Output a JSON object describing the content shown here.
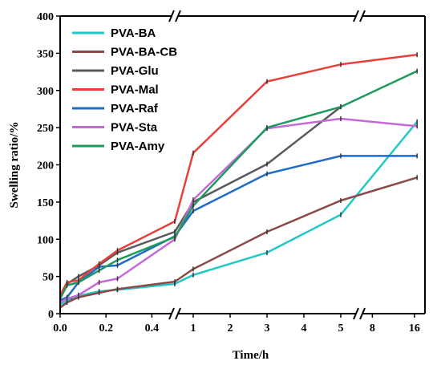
{
  "chart_data": {
    "type": "line",
    "xlabel": "Time/h",
    "ylabel": "Swelling ratio/%",
    "ylim": [
      0,
      400
    ],
    "y_ticks": [
      0,
      50,
      100,
      150,
      200,
      250,
      300,
      350,
      400
    ],
    "x_axis": {
      "broken": true,
      "segments": [
        {
          "range": [
            0,
            0.5
          ],
          "ticks": [
            0.0,
            0.2,
            0.4
          ],
          "tick_labels": [
            "0.0",
            "0.2",
            "0.4"
          ]
        },
        {
          "range": [
            0.5,
            5.5
          ],
          "ticks": [
            1,
            2,
            3,
            4,
            5
          ],
          "tick_labels": [
            "1",
            "2",
            "3",
            "4",
            "5"
          ]
        },
        {
          "range": [
            5.5,
            18
          ],
          "ticks": [
            8,
            16
          ],
          "tick_labels": [
            "8",
            "16"
          ]
        }
      ]
    },
    "legend_position": "top-left",
    "grid": false,
    "series": [
      {
        "name": "PVA-BA",
        "color": "#22c9c4",
        "points": [
          [
            0,
            12
          ],
          [
            0.05,
            20
          ],
          [
            0.08,
            24
          ],
          [
            0.17,
            30
          ],
          [
            0.25,
            32
          ],
          [
            0.5,
            40
          ],
          [
            1,
            52
          ],
          [
            3,
            82
          ],
          [
            5,
            133
          ],
          [
            16.5,
            258
          ]
        ]
      },
      {
        "name": "PVA-BA-CB",
        "color": "#8b4a4a",
        "points": [
          [
            0,
            8
          ],
          [
            0.03,
            15
          ],
          [
            0.08,
            22
          ],
          [
            0.17,
            28
          ],
          [
            0.25,
            33
          ],
          [
            0.5,
            43
          ],
          [
            1,
            60
          ],
          [
            3,
            110
          ],
          [
            5,
            152
          ],
          [
            16.5,
            183
          ]
        ]
      },
      {
        "name": "PVA-Glu",
        "color": "#5a5a5a",
        "points": [
          [
            0,
            20
          ],
          [
            0.03,
            40
          ],
          [
            0.08,
            50
          ],
          [
            0.17,
            65
          ],
          [
            0.25,
            82
          ],
          [
            0.5,
            110
          ],
          [
            1,
            150
          ],
          [
            3,
            201
          ],
          [
            5,
            278
          ]
        ]
      },
      {
        "name": "PVA-Mal",
        "color": "#e8403a",
        "points": [
          [
            0,
            25
          ],
          [
            0.03,
            42
          ],
          [
            0.08,
            45
          ],
          [
            0.17,
            67
          ],
          [
            0.25,
            85
          ],
          [
            0.5,
            124
          ],
          [
            1,
            216
          ],
          [
            3,
            312
          ],
          [
            5,
            335
          ],
          [
            16.5,
            348
          ]
        ]
      },
      {
        "name": "PVA-Raf",
        "color": "#1f6cc8",
        "points": [
          [
            0,
            18
          ],
          [
            0.03,
            22
          ],
          [
            0.08,
            42
          ],
          [
            0.17,
            63
          ],
          [
            0.25,
            65
          ],
          [
            0.5,
            104
          ],
          [
            1,
            138
          ],
          [
            3,
            188
          ],
          [
            5,
            212
          ],
          [
            16.5,
            212
          ]
        ]
      },
      {
        "name": "PVA-Sta",
        "color": "#c36ad8",
        "points": [
          [
            0,
            15
          ],
          [
            0.03,
            20
          ],
          [
            0.08,
            25
          ],
          [
            0.17,
            42
          ],
          [
            0.25,
            47
          ],
          [
            0.5,
            100
          ],
          [
            1,
            153
          ],
          [
            3,
            249
          ],
          [
            5,
            262
          ],
          [
            16.5,
            252
          ]
        ]
      },
      {
        "name": "PVA-Amy",
        "color": "#1e9a5e",
        "points": [
          [
            0,
            20
          ],
          [
            0.03,
            38
          ],
          [
            0.08,
            42
          ],
          [
            0.17,
            58
          ],
          [
            0.25,
            72
          ],
          [
            0.5,
            103
          ],
          [
            1,
            145
          ],
          [
            3,
            250
          ],
          [
            5,
            278
          ],
          [
            16.5,
            326
          ]
        ]
      }
    ]
  }
}
